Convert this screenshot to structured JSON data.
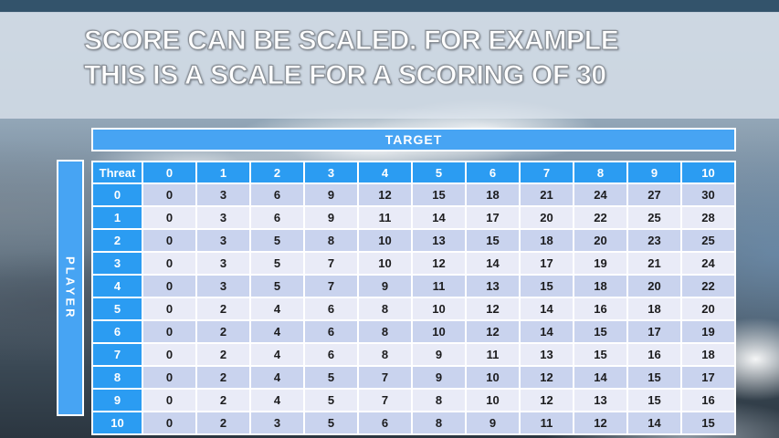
{
  "slide": {
    "title_line1": "SCORE CAN BE SCALED. FOR EXAMPLE",
    "title_line2": "THIS IS A SCALE FOR A SCORING OF 30"
  },
  "table": {
    "target_label": "TARGET",
    "player_label": "PLAYER",
    "corner_label": "Threat",
    "column_headers": [
      "0",
      "1",
      "2",
      "3",
      "4",
      "5",
      "6",
      "7",
      "8",
      "9",
      "10"
    ],
    "rows": [
      {
        "threat": "0",
        "values": [
          0,
          3,
          6,
          9,
          12,
          15,
          18,
          21,
          24,
          27,
          30
        ]
      },
      {
        "threat": "1",
        "values": [
          0,
          3,
          6,
          9,
          11,
          14,
          17,
          20,
          22,
          25,
          28
        ]
      },
      {
        "threat": "2",
        "values": [
          0,
          3,
          5,
          8,
          10,
          13,
          15,
          18,
          20,
          23,
          25
        ]
      },
      {
        "threat": "3",
        "values": [
          0,
          3,
          5,
          7,
          10,
          12,
          14,
          17,
          19,
          21,
          24
        ]
      },
      {
        "threat": "4",
        "values": [
          0,
          3,
          5,
          7,
          9,
          11,
          13,
          15,
          18,
          20,
          22
        ]
      },
      {
        "threat": "5",
        "values": [
          0,
          2,
          4,
          6,
          8,
          10,
          12,
          14,
          16,
          18,
          20
        ]
      },
      {
        "threat": "6",
        "values": [
          0,
          2,
          4,
          6,
          8,
          10,
          12,
          14,
          15,
          17,
          19
        ]
      },
      {
        "threat": "7",
        "values": [
          0,
          2,
          4,
          6,
          8,
          9,
          11,
          13,
          15,
          16,
          18
        ]
      },
      {
        "threat": "8",
        "values": [
          0,
          2,
          4,
          5,
          7,
          9,
          10,
          12,
          14,
          15,
          17
        ]
      },
      {
        "threat": "9",
        "values": [
          0,
          2,
          4,
          5,
          7,
          8,
          10,
          12,
          13,
          15,
          16
        ]
      },
      {
        "threat": "10",
        "values": [
          0,
          2,
          3,
          5,
          6,
          8,
          9,
          11,
          12,
          14,
          15
        ]
      }
    ]
  },
  "colors": {
    "accent_blue": "#2b9cf2",
    "bar_blue": "#47a4f3",
    "row_even": "#c9d3ee",
    "row_odd": "#e9ebf7",
    "cell_text": "#1c1c1e",
    "border_white": "#ffffff",
    "top_strip": "#33536b",
    "bottom_dark": "#2b3640"
  }
}
